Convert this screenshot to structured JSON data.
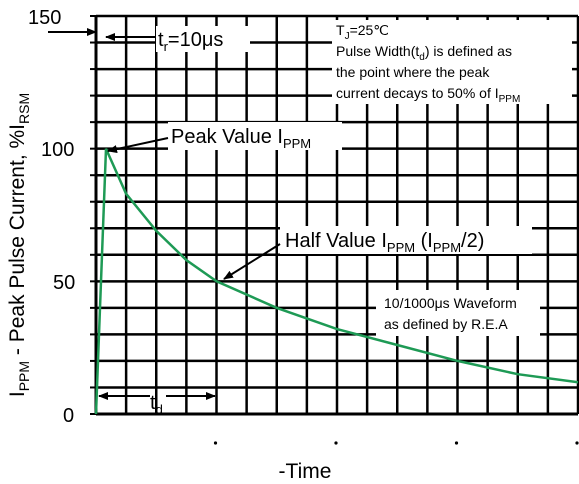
{
  "chart_data": {
    "type": "line",
    "title": "",
    "xlabel": "-Time",
    "ylabel": {
      "main": "I",
      "main_sub": "PPM",
      "rest": " - Peak Pulse Current, %I",
      "rest_sub": "RSM"
    },
    "ylim": [
      0,
      150
    ],
    "xlim": [
      0,
      4
    ],
    "y_ticks": [
      0,
      50,
      100,
      150
    ],
    "x_ticks": [
      1,
      2,
      3,
      4
    ],
    "grid": true,
    "line_color": "#1e9a55",
    "grid_color": "#000000",
    "series": [
      {
        "x": [
          0,
          0.083,
          0.25,
          0.5,
          0.75,
          1.0,
          1.5,
          2.0,
          2.5,
          3.0,
          3.5,
          4.0
        ],
        "y": [
          0,
          100,
          83,
          69,
          58,
          50,
          40,
          32,
          26,
          20,
          15,
          12
        ]
      }
    ],
    "annotations": {
      "tr": {
        "prefix": "t",
        "sub": "r",
        "suffix": "=10μs"
      },
      "td": {
        "prefix": "t",
        "sub": "d"
      },
      "peak": {
        "prefix": "Peak Value I",
        "sub": "PPM"
      },
      "half": {
        "prefix": "Half Value I",
        "sub1": "PPM",
        "mid": " (I",
        "sub2": "PPM",
        "suffix": "/2)"
      },
      "tj": {
        "prefix": "T",
        "sub": "J",
        "suffix": "=25℃"
      },
      "pulse_width": {
        "line1_prefix": "Pulse Width(t",
        "line1_sub": "d",
        "line1_suffix": ") is defined as",
        "line2": "the point where the peak",
        "line3_prefix": "current decays to 50% of I",
        "line3_sub": "PPM"
      },
      "waveform": {
        "line1": "10/1000μs Waveform",
        "line2": "as defined by R.E.A"
      }
    }
  }
}
